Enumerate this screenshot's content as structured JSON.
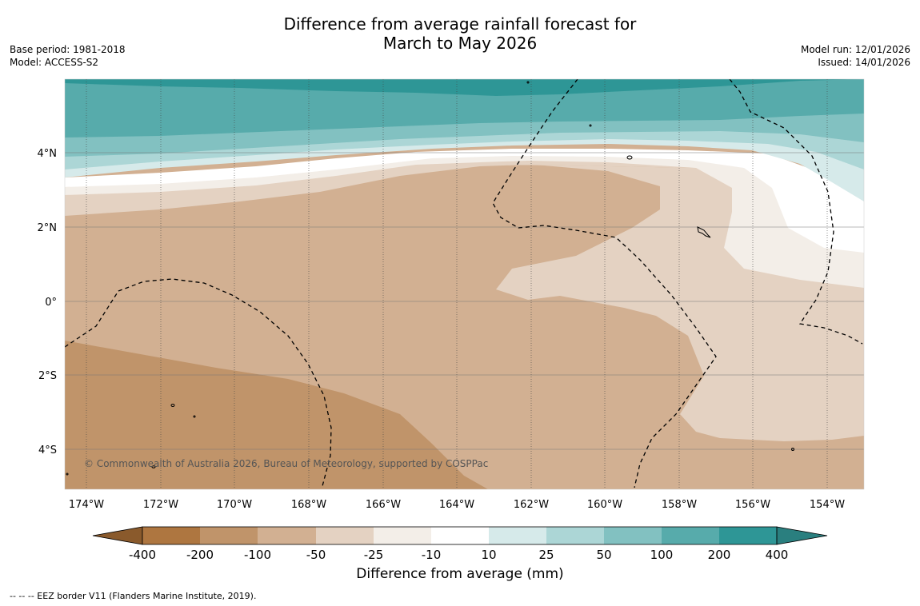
{
  "title": {
    "line1": "Difference from average rainfall forecast for",
    "line2": "March to May 2026"
  },
  "meta": {
    "base_period": "Base period: 1981-2018",
    "model": "Model: ACCESS-S2",
    "model_run": "Model run: 12/01/2026",
    "issued": "Issued: 14/01/2026"
  },
  "map": {
    "x_ticks": [
      "174°W",
      "172°W",
      "170°W",
      "168°W",
      "166°W",
      "164°W",
      "162°W",
      "160°W",
      "158°W",
      "156°W",
      "154°W"
    ],
    "y_ticks": [
      "4°N",
      "2°N",
      "0°",
      "2°S",
      "4°S"
    ],
    "copyright": "© Commonwealth of Australia 2026, Bureau of Meteorology, supported by COSPPac"
  },
  "colorbar": {
    "title": "Difference from average (mm)",
    "labels": [
      "-400",
      "-200",
      "-100",
      "-50",
      "-25",
      "-10",
      "10",
      "25",
      "50",
      "100",
      "200",
      "400"
    ],
    "colors": {
      "below_400": "#8a5a2c",
      "n400_200": "#ae7640",
      "n200_100": "#c0946a",
      "n100_50": "#d2b092",
      "n50_25": "#e4d2c2",
      "n25_10": "#f3eee8",
      "n10_10": "#ffffff",
      "p10_25": "#d6eaea",
      "p25_50": "#acd6d6",
      "p50_100": "#82c1c1",
      "p100_200": "#57abab",
      "p200_400": "#2e9696",
      "above_400": "#2a7f7f"
    }
  },
  "footer": {
    "eez_legend": "--  --  -- EEZ border V11 (Flanders Marine Institute, 2019)."
  }
}
